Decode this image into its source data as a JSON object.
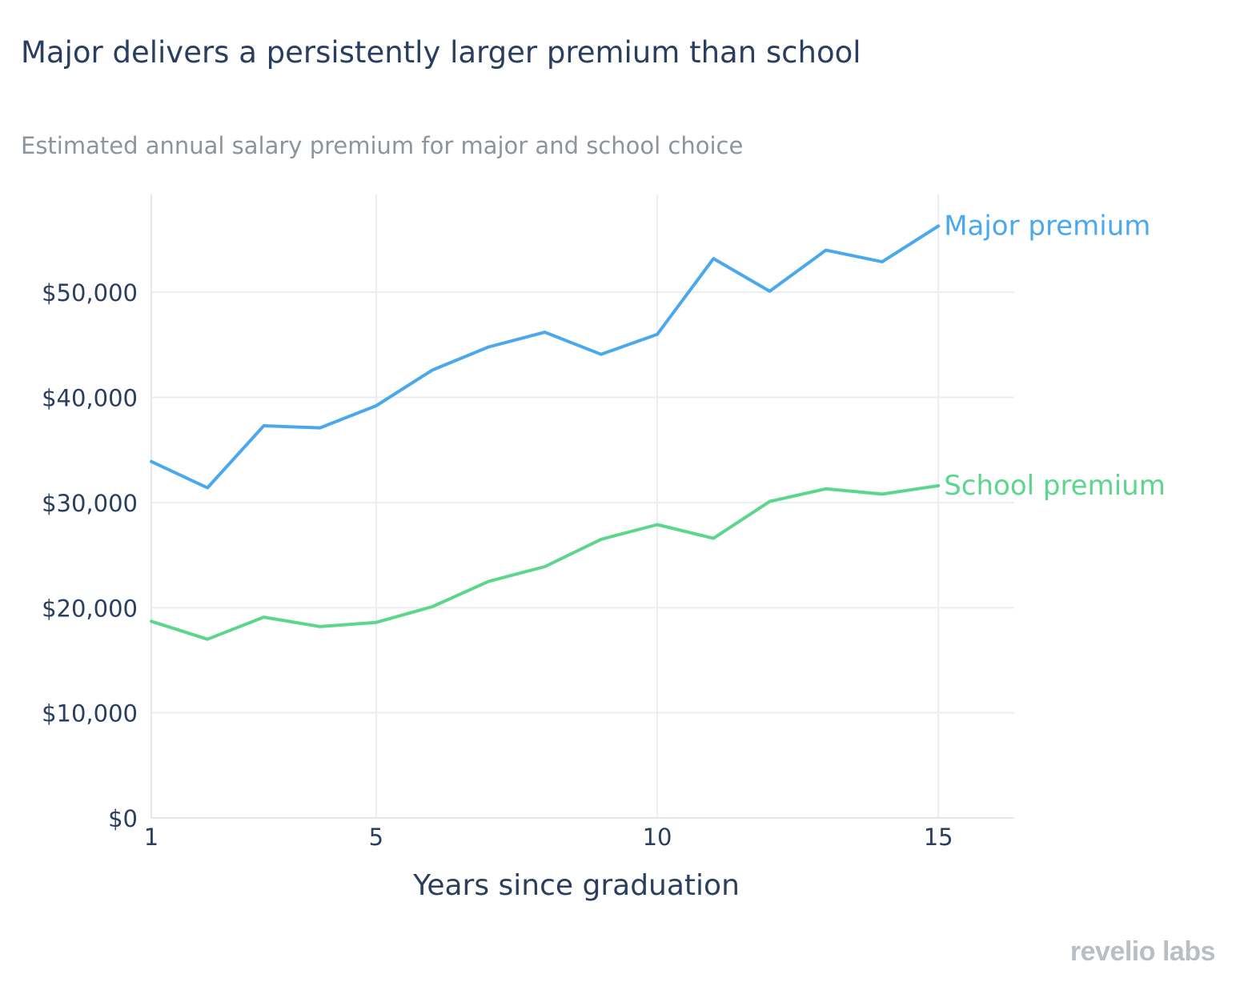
{
  "title": "Major delivers a persistently larger premium than school",
  "subtitle": "Estimated annual salary premium for major and school choice",
  "brand": "revelio labs",
  "chart_data": {
    "type": "line",
    "xlabel": "Years since graduation",
    "ylabel": "",
    "xlim": [
      1,
      16.35
    ],
    "ylim": [
      0,
      59300
    ],
    "x_ticks": [
      1,
      5,
      10,
      15
    ],
    "x_tick_labels": [
      "1",
      "5",
      "10",
      "15"
    ],
    "y_ticks": [
      0,
      10000,
      20000,
      30000,
      40000,
      50000
    ],
    "y_tick_labels": [
      "$0",
      "$10,000",
      "$20,000",
      "$30,000",
      "$40,000",
      "$50,000"
    ],
    "grid": true,
    "legend": "direct labels at line ends (right)",
    "x": [
      1,
      2,
      3,
      4,
      5,
      6,
      7,
      8,
      9,
      10,
      11,
      12,
      13,
      14,
      15
    ],
    "series": [
      {
        "name": "Major premium",
        "color": "#4aa8ec",
        "values": [
          33900,
          31400,
          37300,
          37100,
          39200,
          42600,
          44800,
          46200,
          44100,
          46000,
          53200,
          50100,
          54000,
          52900,
          56300
        ]
      },
      {
        "name": "School premium",
        "color": "#5cd68c",
        "values": [
          18700,
          17000,
          19100,
          18200,
          18600,
          20100,
          22500,
          23900,
          26500,
          27900,
          26600,
          30100,
          31300,
          30800,
          31600
        ]
      }
    ]
  }
}
